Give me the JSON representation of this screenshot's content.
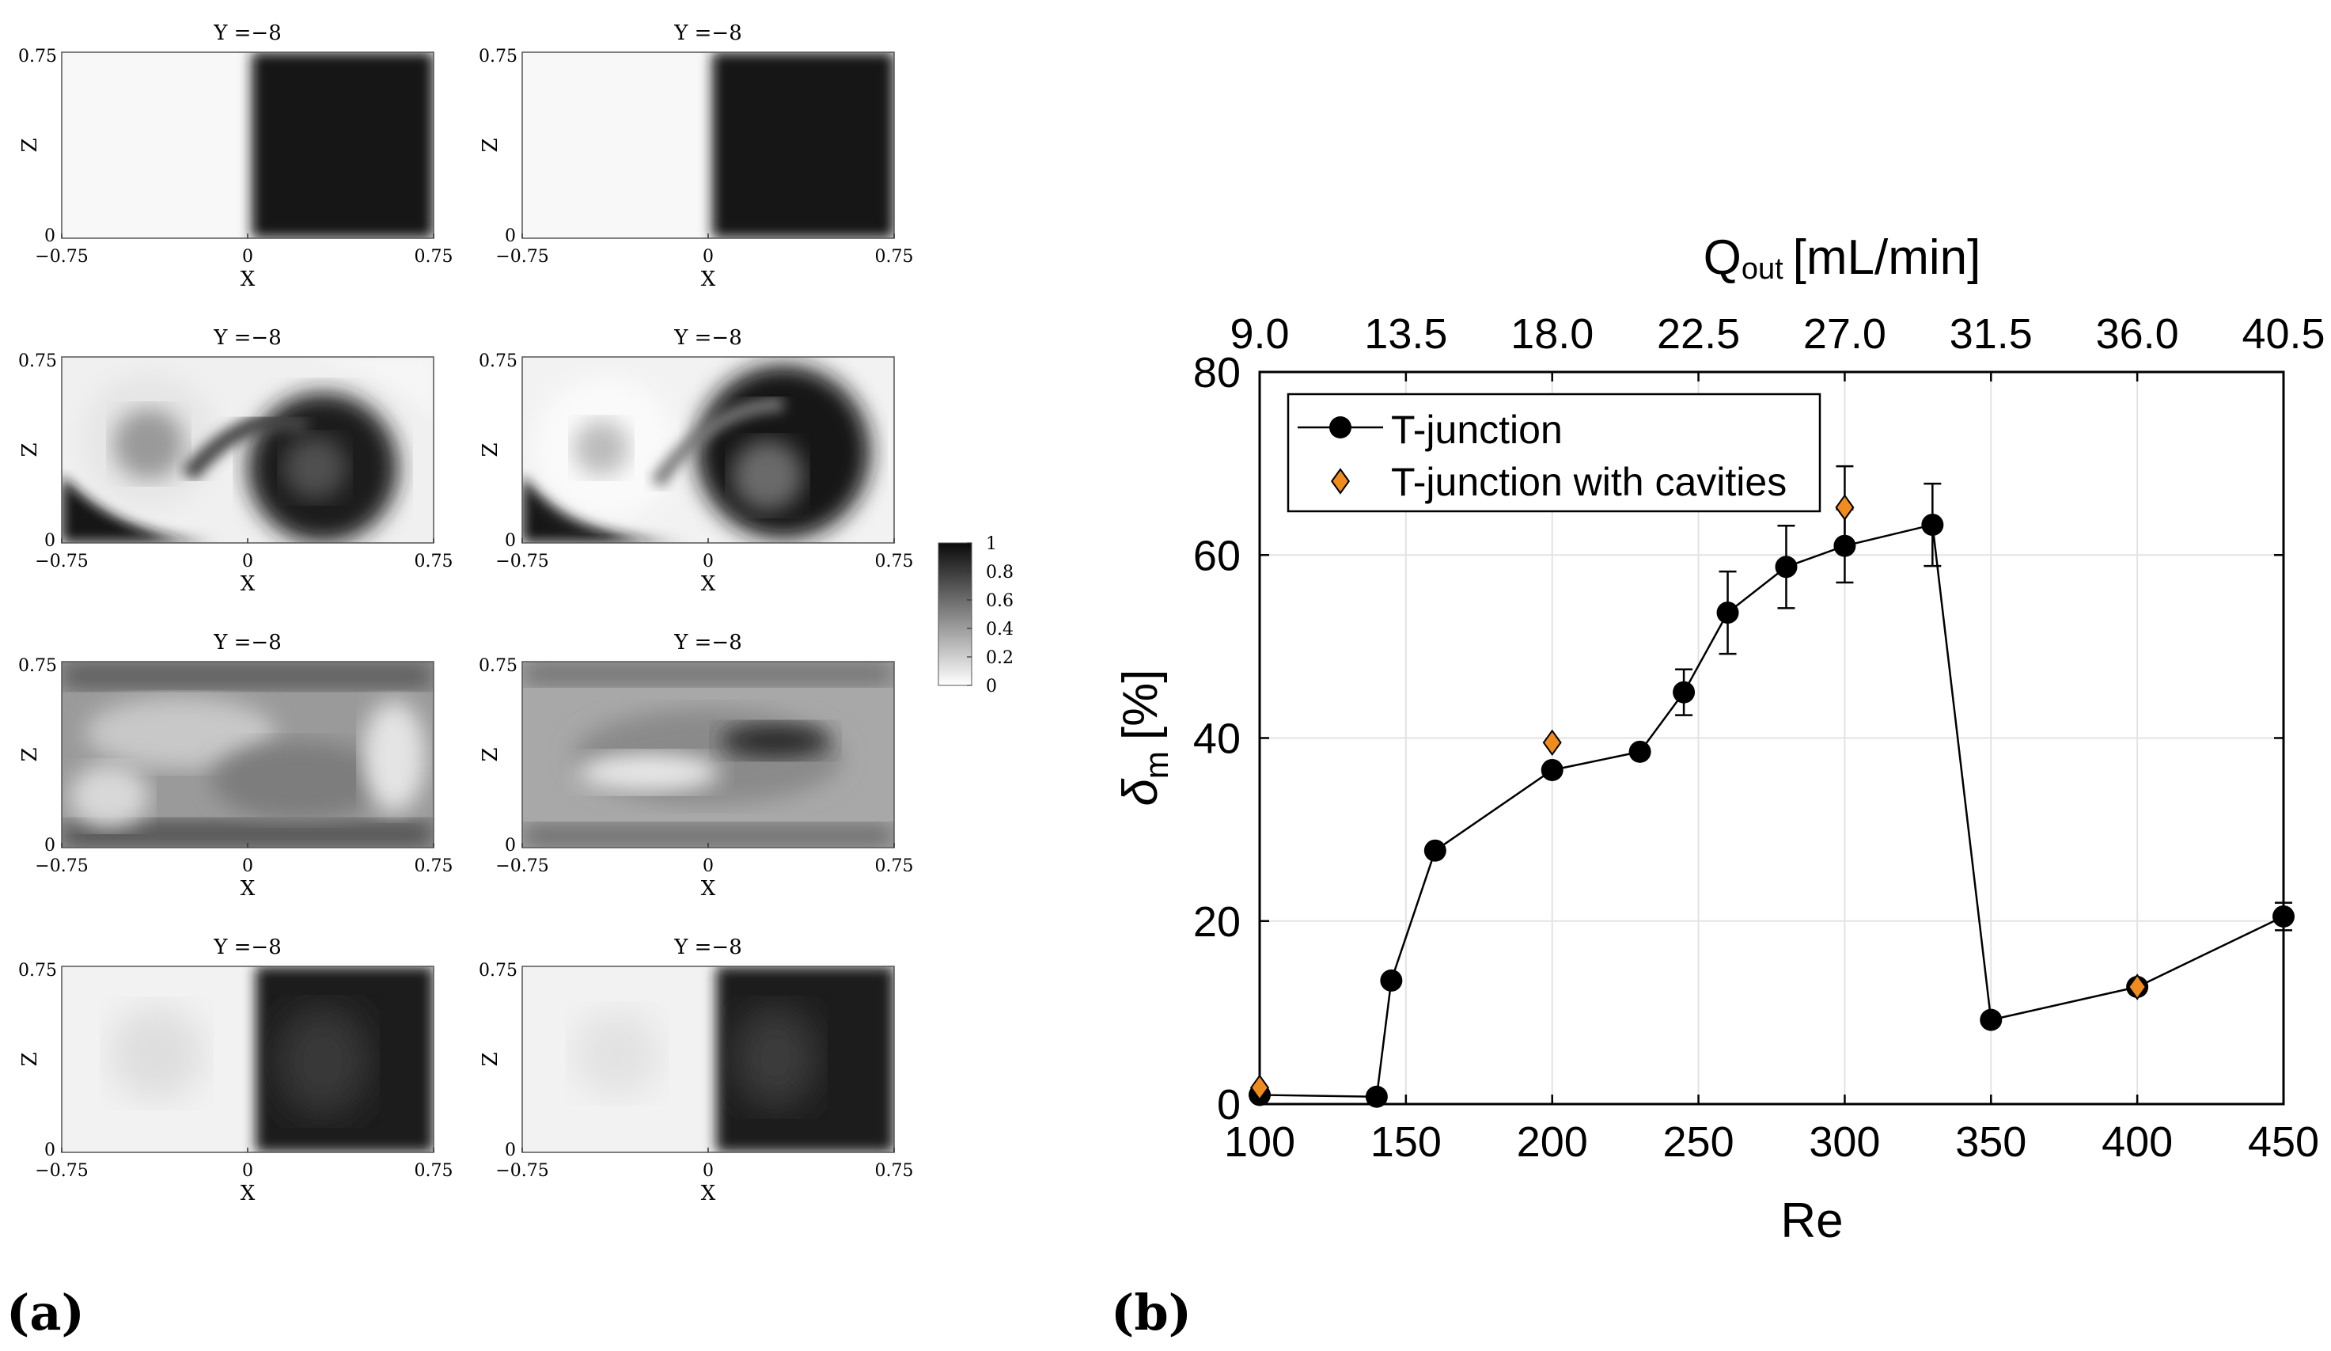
{
  "panel_labels": {
    "a": "(a)",
    "b": "(b)"
  },
  "contour_panels": {
    "title": "Y =−8",
    "xlabel": "X",
    "ylabel": "Z",
    "x_ticks": [
      "−0.75",
      "0",
      "0.75"
    ],
    "y_ticks": [
      "0",
      "0.75"
    ],
    "rows": 4,
    "cols": 2
  },
  "colorbar": {
    "ticks": [
      "1",
      "0.8",
      "0.6",
      "0.4",
      "0.2",
      "0"
    ]
  },
  "chart_data": {
    "type": "line",
    "xlabel": "Re",
    "ylabel": "δ",
    "ylabel_sub": "m",
    "ylabel_unit": "[%]",
    "top_axis_label": "Q",
    "top_axis_sub": "out",
    "top_axis_unit": "[mL/min]",
    "xlim": [
      100,
      450
    ],
    "ylim": [
      0,
      80
    ],
    "x_ticks": [
      100,
      150,
      200,
      250,
      300,
      350,
      400,
      450
    ],
    "y_ticks": [
      0,
      20,
      40,
      60,
      80
    ],
    "top_ticks": [
      "9.0",
      "13.5",
      "18.0",
      "22.5",
      "27.0",
      "31.5",
      "36.0",
      "40.5"
    ],
    "grid": true,
    "legend_position": "top-left",
    "series": [
      {
        "name": "T-junction",
        "color": "#000000",
        "marker": "circle",
        "x": [
          100,
          140,
          145,
          160,
          200,
          230,
          245,
          260,
          280,
          300,
          330,
          350,
          400,
          450
        ],
        "values": [
          1.0,
          0.8,
          13.5,
          27.7,
          36.5,
          38.5,
          45.0,
          53.7,
          58.7,
          61.0,
          63.3,
          9.2,
          12.8,
          20.5
        ],
        "errors": [
          0,
          0,
          0,
          0,
          0,
          0,
          2.5,
          4.5,
          4.5,
          4.0,
          4.5,
          0,
          0,
          1.5
        ]
      },
      {
        "name": "T-junction with cavities",
        "color": "#f08c1e",
        "marker": "diamond",
        "x": [
          100,
          200,
          300,
          400
        ],
        "values": [
          1.8,
          39.5,
          65.2,
          12.8
        ],
        "errors": [
          0,
          0,
          4.5,
          0
        ]
      }
    ]
  }
}
